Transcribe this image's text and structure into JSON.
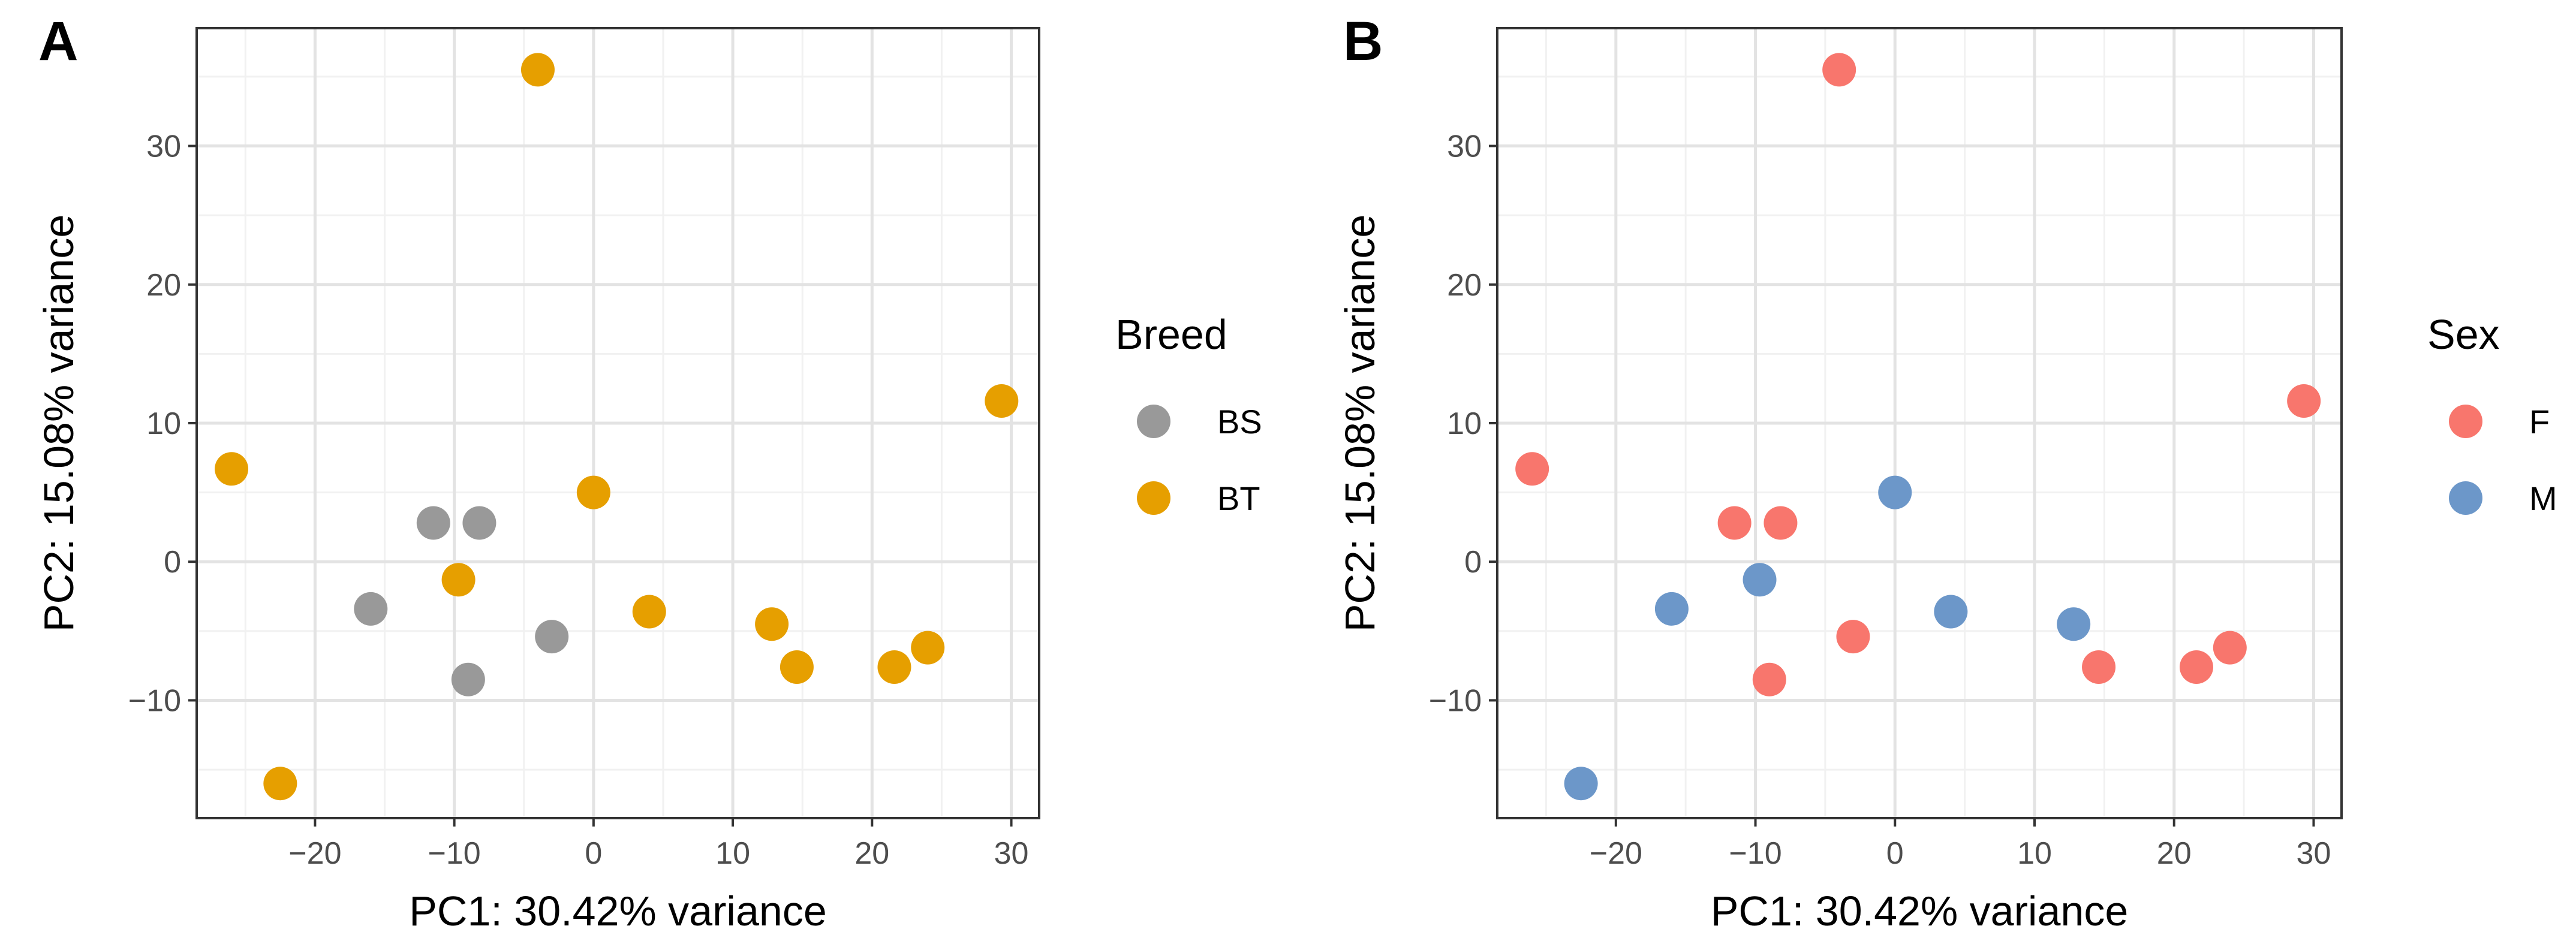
{
  "chart_data": [
    {
      "panel": "A",
      "type": "scatter",
      "xlabel": "PC1: 30.42% variance",
      "ylabel": "PC2: 15.08% variance",
      "xlim": [
        -28.5,
        32
      ],
      "ylim": [
        -18.5,
        38.5
      ],
      "xticks": [
        -20,
        -10,
        0,
        10,
        20,
        30
      ],
      "yticks": [
        -10,
        0,
        10,
        20,
        30
      ],
      "xtick_labels": [
        "−20",
        "−10",
        "0",
        "10",
        "20",
        "30"
      ],
      "ytick_labels": [
        "−10",
        "0",
        "10",
        "20",
        "30"
      ],
      "legend": {
        "title": "Breed",
        "position": "right"
      },
      "series": [
        {
          "name": "BS",
          "color": "#999999",
          "x": [
            -11.5,
            -8.2,
            -16,
            -3,
            -9
          ],
          "y": [
            2.8,
            2.8,
            -3.4,
            -5.4,
            -8.5
          ]
        },
        {
          "name": "BT",
          "color": "#E69F00",
          "x": [
            -4,
            29.3,
            -26,
            0,
            -9.7,
            4,
            12.8,
            14.6,
            21.6,
            24,
            -22.5
          ],
          "y": [
            35.5,
            11.6,
            6.7,
            5,
            -1.3,
            -3.6,
            -4.5,
            -7.6,
            -7.6,
            -6.2,
            -16
          ]
        }
      ]
    },
    {
      "panel": "B",
      "type": "scatter",
      "xlabel": "PC1: 30.42% variance",
      "ylabel": "PC2: 15.08% variance",
      "xlim": [
        -28.5,
        32
      ],
      "ylim": [
        -18.5,
        38.5
      ],
      "xticks": [
        -20,
        -10,
        0,
        10,
        20,
        30
      ],
      "yticks": [
        -10,
        0,
        10,
        20,
        30
      ],
      "xtick_labels": [
        "−20",
        "−10",
        "0",
        "10",
        "20",
        "30"
      ],
      "ytick_labels": [
        "−10",
        "0",
        "10",
        "20",
        "30"
      ],
      "legend": {
        "title": "Sex",
        "position": "right"
      },
      "series": [
        {
          "name": "F",
          "color": "#F8766D",
          "x": [
            -4,
            29.3,
            -26,
            -11.5,
            -8.2,
            -3,
            -9,
            14.6,
            21.6,
            24
          ],
          "y": [
            35.5,
            11.6,
            6.7,
            2.8,
            2.8,
            -5.4,
            -8.5,
            -7.6,
            -7.6,
            -6.2
          ]
        },
        {
          "name": "M",
          "color": "#6C97C9",
          "x": [
            0,
            -9.7,
            -16,
            4,
            12.8,
            -22.5
          ],
          "y": [
            5,
            -1.3,
            -3.4,
            -3.6,
            -4.5,
            -16
          ]
        }
      ]
    }
  ]
}
